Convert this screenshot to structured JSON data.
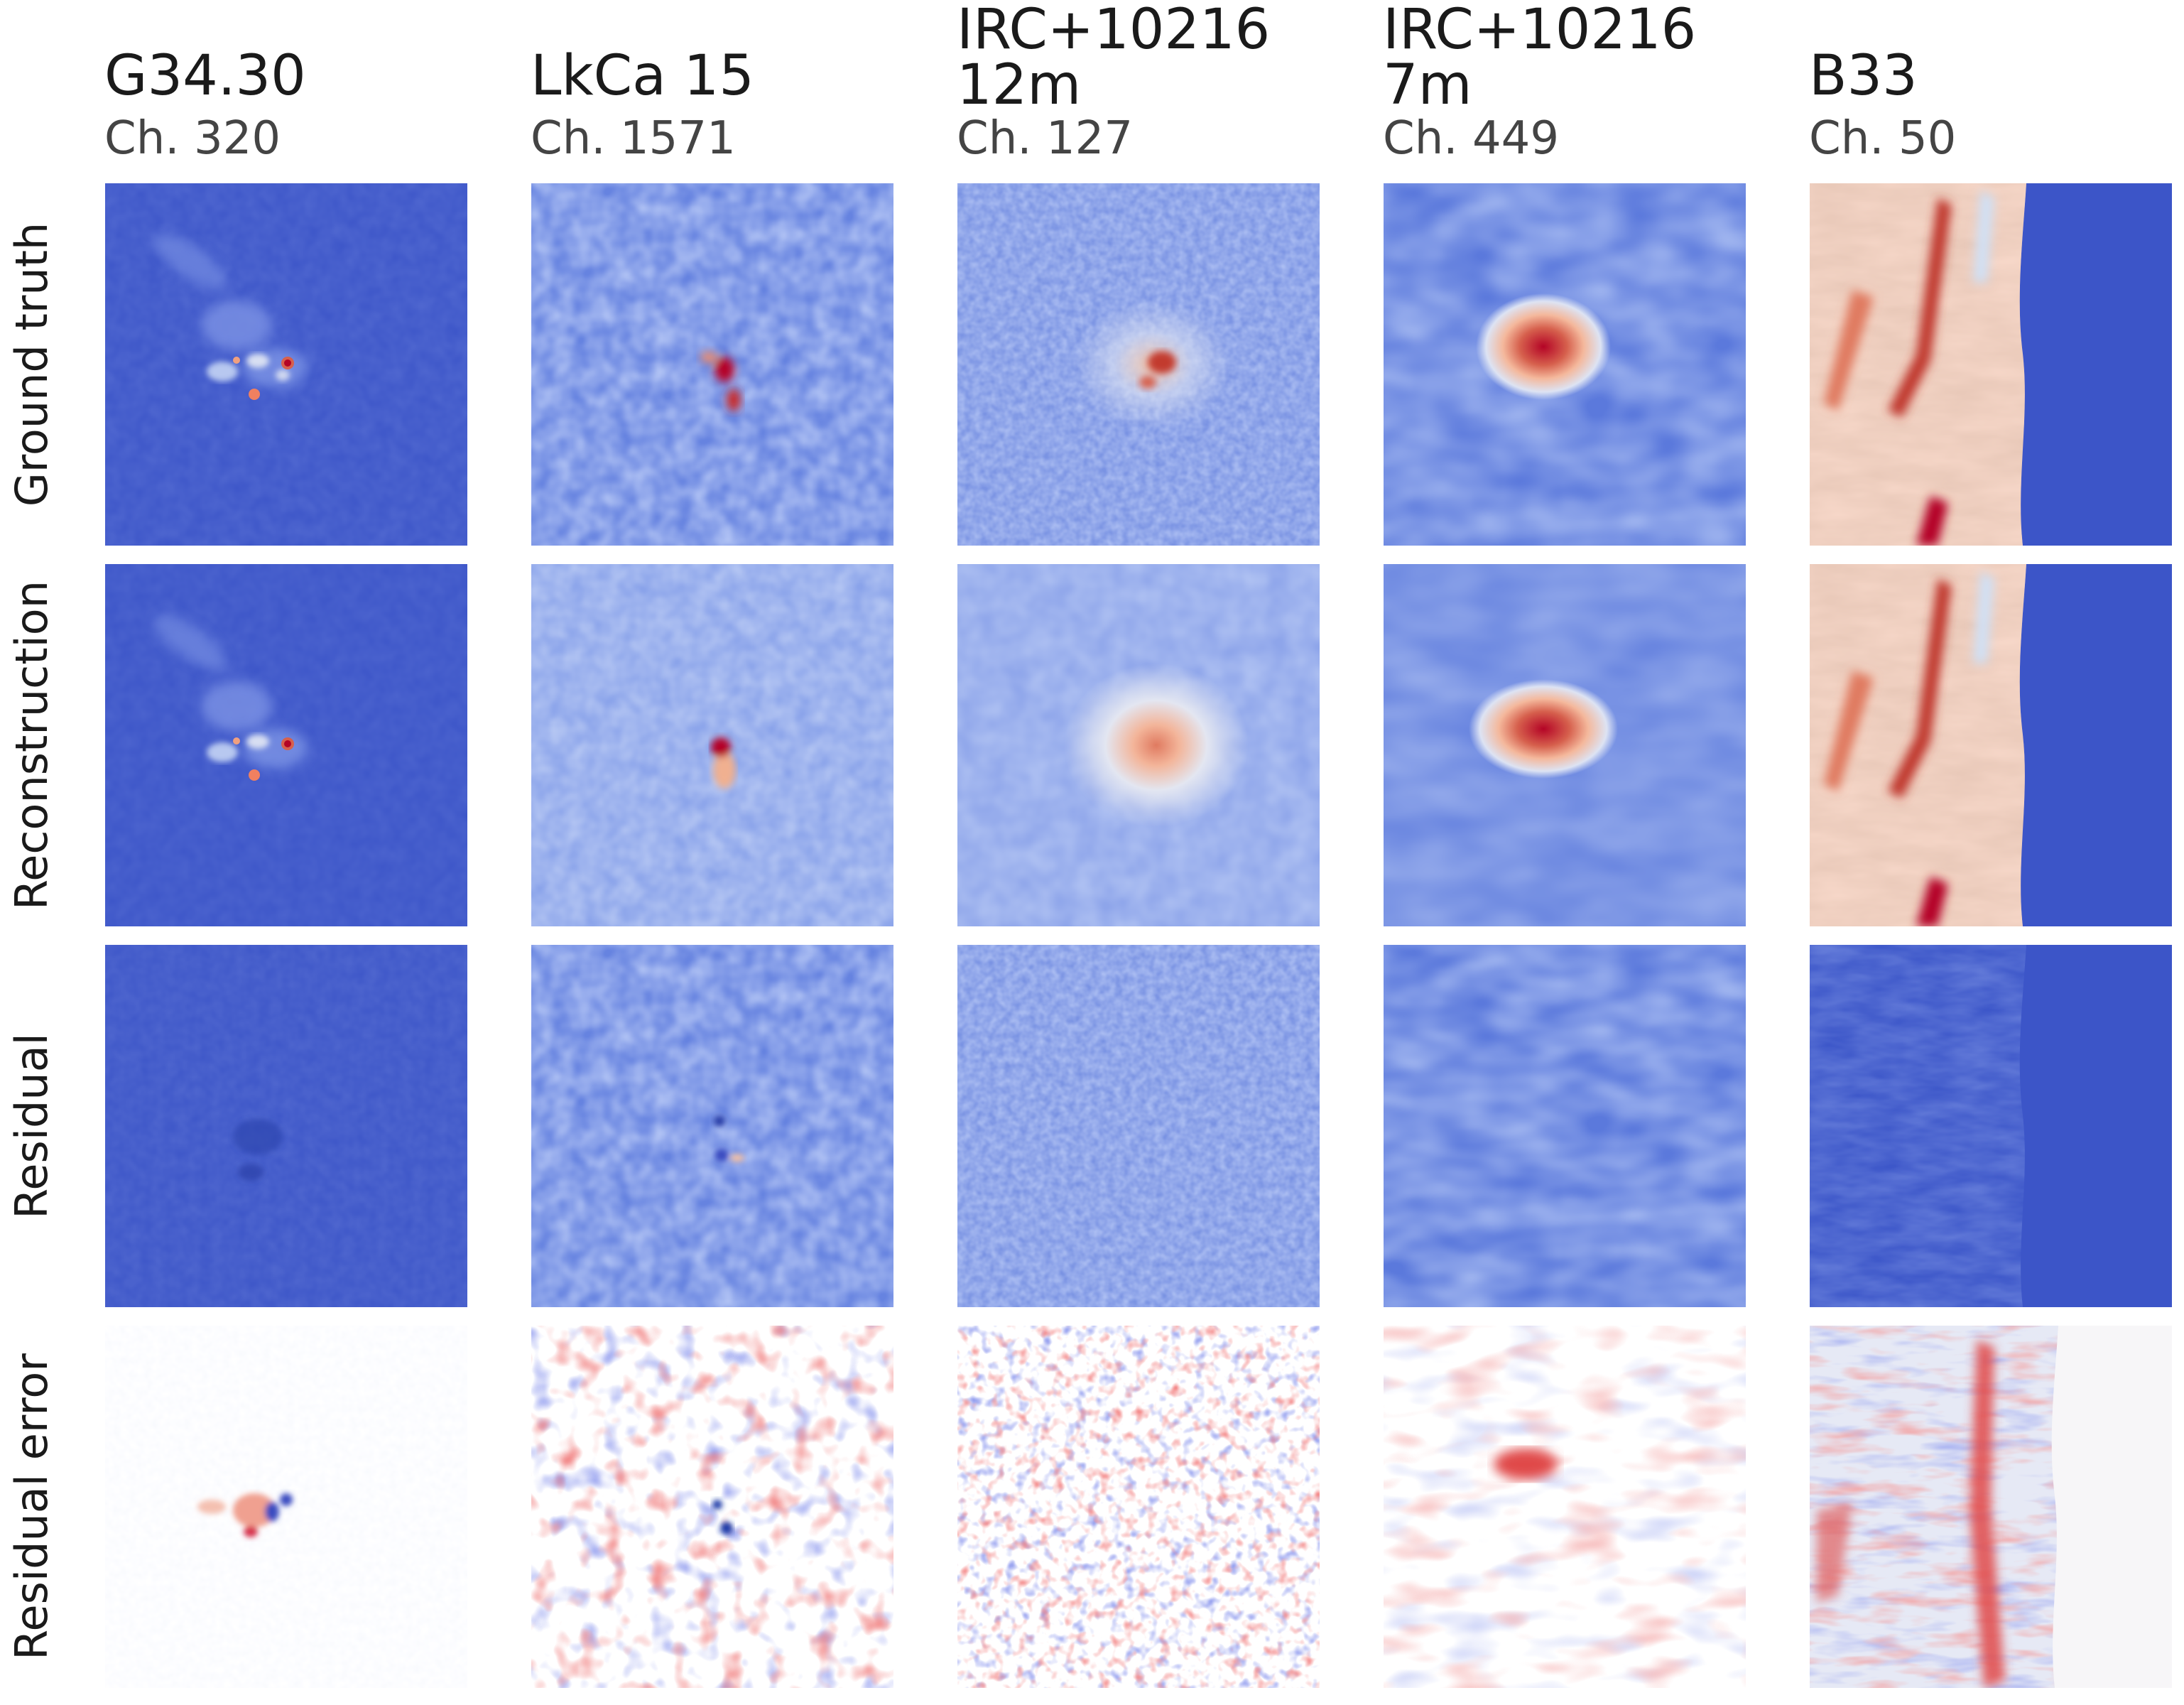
{
  "columns": [
    {
      "id": "g3430",
      "title": "G34.30",
      "title2": "",
      "channel": "Ch. 320"
    },
    {
      "id": "lkca15",
      "title": "LkCa 15",
      "title2": "",
      "channel": "Ch. 1571"
    },
    {
      "id": "irc12m",
      "title": "IRC+10216",
      "title2": "12m",
      "channel": "Ch. 127"
    },
    {
      "id": "irc7m",
      "title": "IRC+10216",
      "title2": "7m",
      "channel": "Ch. 449"
    },
    {
      "id": "b33",
      "title": "B33",
      "title2": "",
      "channel": "Ch. 50"
    }
  ],
  "rows": [
    {
      "id": "ground-truth",
      "label": "Ground truth"
    },
    {
      "id": "reconstruction",
      "label": "Reconstruction"
    },
    {
      "id": "residual",
      "label": "Residual"
    },
    {
      "id": "residual-error",
      "label": "Residual error"
    }
  ],
  "colormap": {
    "name": "coolwarm",
    "low": "#3b4cc0",
    "mid": "#dddcdc",
    "high": "#b40426",
    "residual_error_mid": "#ffffff"
  }
}
